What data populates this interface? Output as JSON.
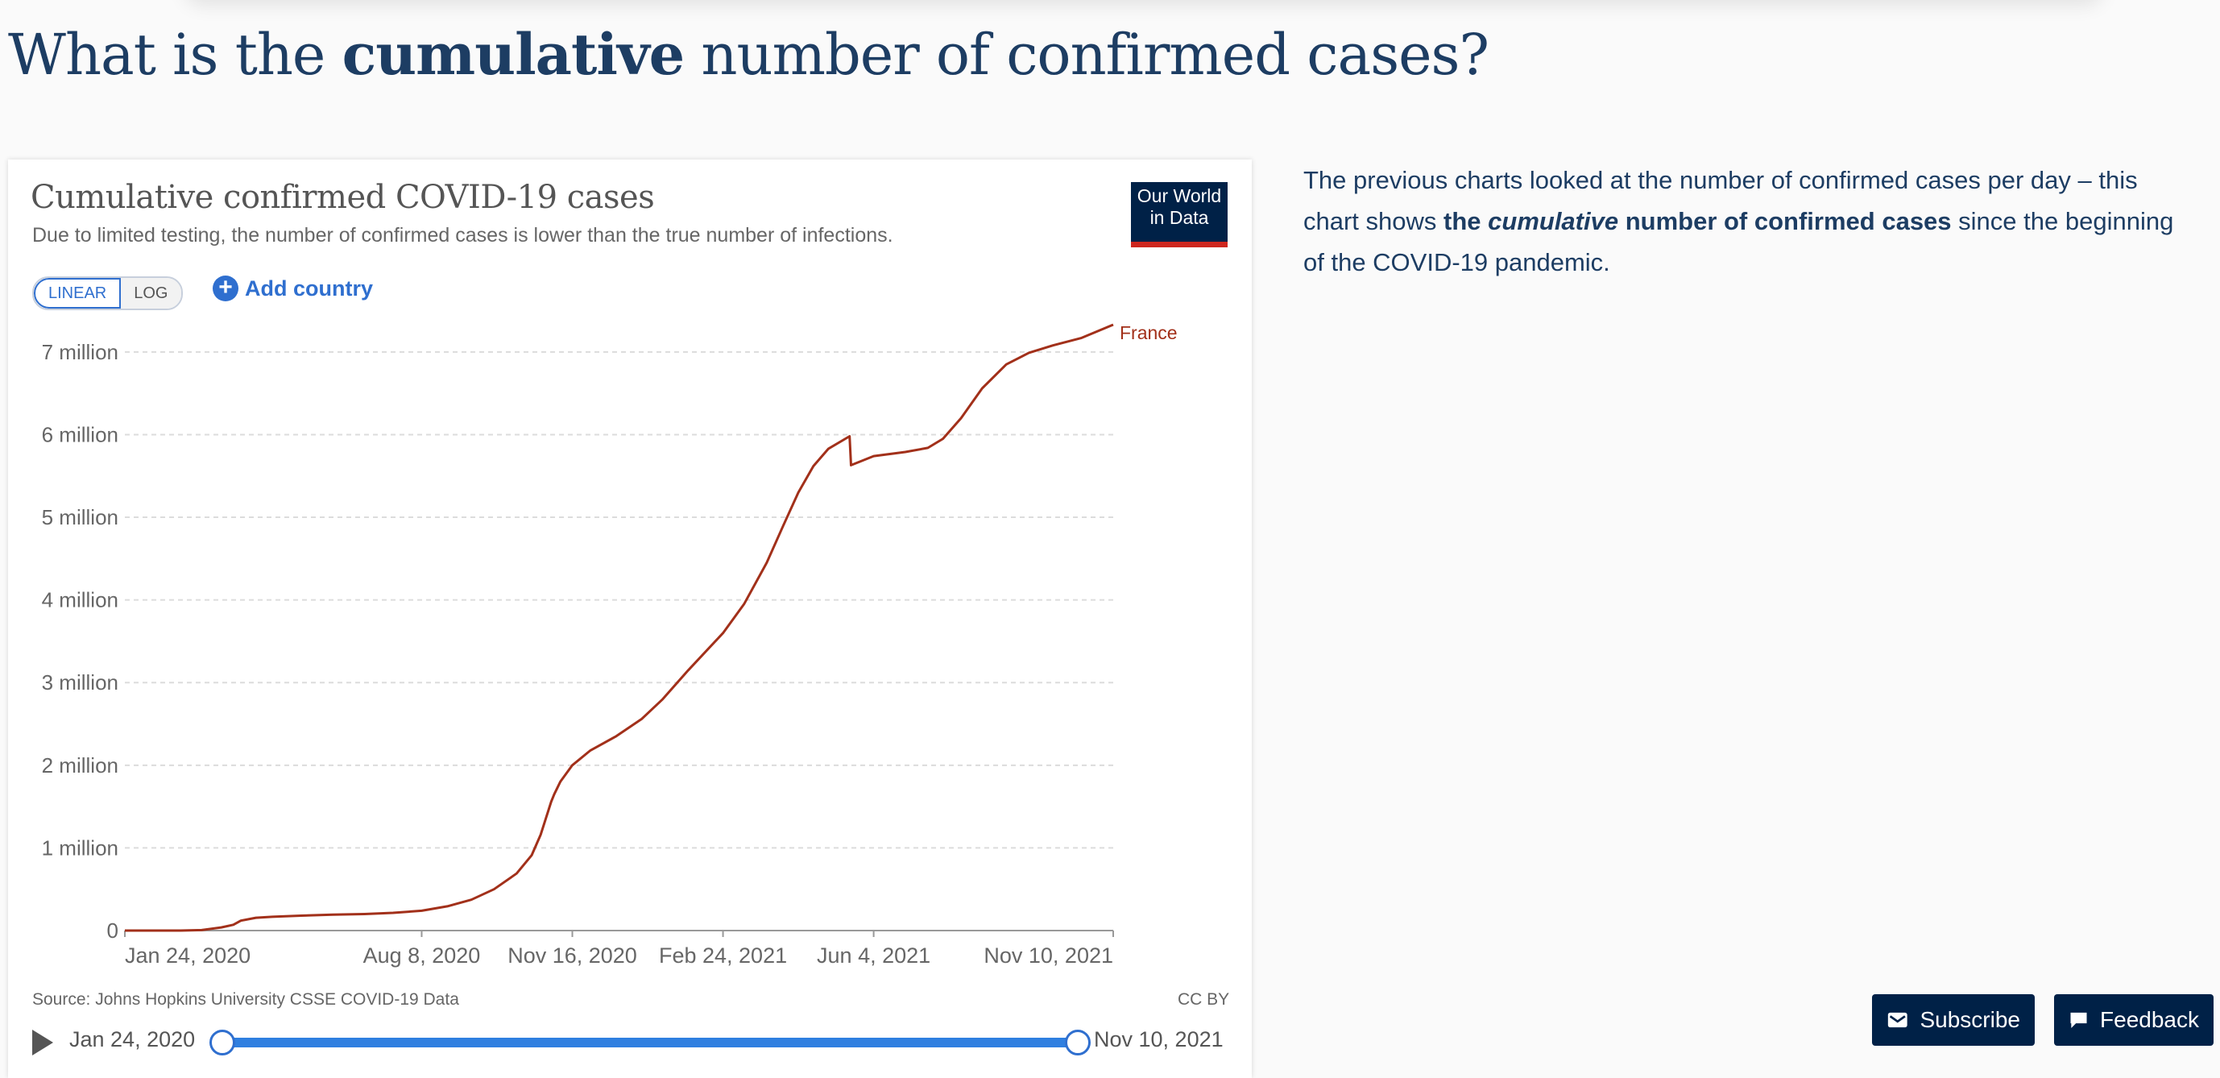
{
  "heading": {
    "before": "What is the ",
    "bold": "cumulative",
    "after": " number of confirmed cases?"
  },
  "chart": {
    "title": "Cumulative confirmed COVID-19 cases",
    "subtitle": "Due to limited testing, the number of confirmed cases is lower than the true number of infections.",
    "logo_line1": "Our World",
    "logo_line2": "in Data",
    "scale_linear": "LINEAR",
    "scale_log": "LOG",
    "add_country": "Add country",
    "source": "Source: Johns Hopkins University CSSE COVID-19 Data",
    "license": "CC BY",
    "timeline_start": "Jan 24, 2020",
    "timeline_end": "Nov 10, 2021"
  },
  "chart_data": {
    "type": "line",
    "title": "Cumulative confirmed COVID-19 cases",
    "xlabel": "",
    "ylabel": "",
    "x_range": [
      "2020-01-24",
      "2021-11-10"
    ],
    "ylim": [
      0,
      7340000
    ],
    "y_ticks": [
      0,
      1000000,
      2000000,
      3000000,
      4000000,
      5000000,
      6000000,
      7000000
    ],
    "y_tick_labels": [
      "0",
      "1 million",
      "2 million",
      "3 million",
      "4 million",
      "5 million",
      "6 million",
      "7 million"
    ],
    "x_ticks": [
      "2020-01-24",
      "2020-08-08",
      "2020-11-16",
      "2021-02-24",
      "2021-06-04",
      "2021-11-10"
    ],
    "x_tick_labels": [
      "Jan 24, 2020",
      "Aug 8, 2020",
      "Nov 16, 2020",
      "Feb 24, 2021",
      "Jun 4, 2021",
      "Nov 10, 2021"
    ],
    "grid": true,
    "line_color": "#a2301a",
    "series": [
      {
        "name": "France",
        "points": [
          [
            "2020-01-24",
            0
          ],
          [
            "2020-03-01",
            100
          ],
          [
            "2020-03-15",
            5400
          ],
          [
            "2020-03-28",
            38000
          ],
          [
            "2020-04-05",
            70000
          ],
          [
            "2020-04-10",
            120000
          ],
          [
            "2020-04-20",
            155000
          ],
          [
            "2020-05-01",
            167000
          ],
          [
            "2020-05-20",
            180000
          ],
          [
            "2020-06-10",
            192000
          ],
          [
            "2020-07-01",
            200000
          ],
          [
            "2020-07-20",
            214000
          ],
          [
            "2020-08-08",
            240000
          ],
          [
            "2020-08-25",
            293000
          ],
          [
            "2020-09-10",
            373000
          ],
          [
            "2020-09-25",
            500000
          ],
          [
            "2020-10-10",
            690000
          ],
          [
            "2020-10-20",
            910000
          ],
          [
            "2020-10-26",
            1160000
          ],
          [
            "2020-11-02",
            1560000
          ],
          [
            "2020-11-04",
            1650000
          ],
          [
            "2020-11-08",
            1800000
          ],
          [
            "2020-11-16",
            2000000
          ],
          [
            "2020-11-28",
            2180000
          ],
          [
            "2020-12-15",
            2350000
          ],
          [
            "2021-01-01",
            2560000
          ],
          [
            "2021-01-15",
            2800000
          ],
          [
            "2021-02-01",
            3150000
          ],
          [
            "2021-02-24",
            3600000
          ],
          [
            "2021-03-10",
            3950000
          ],
          [
            "2021-03-25",
            4450000
          ],
          [
            "2021-04-05",
            4900000
          ],
          [
            "2021-04-15",
            5300000
          ],
          [
            "2021-04-25",
            5620000
          ],
          [
            "2021-05-05",
            5830000
          ],
          [
            "2021-05-19",
            5980000
          ],
          [
            "2021-05-20",
            5630000
          ],
          [
            "2021-06-04",
            5740000
          ],
          [
            "2021-06-25",
            5790000
          ],
          [
            "2021-07-10",
            5840000
          ],
          [
            "2021-07-20",
            5950000
          ],
          [
            "2021-08-01",
            6200000
          ],
          [
            "2021-08-15",
            6560000
          ],
          [
            "2021-08-31",
            6850000
          ],
          [
            "2021-09-15",
            6990000
          ],
          [
            "2021-10-01",
            7080000
          ],
          [
            "2021-10-20",
            7170000
          ],
          [
            "2021-11-10",
            7330000
          ]
        ]
      }
    ]
  },
  "description": {
    "text1": "The previous charts looked at the number of confirmed cases per day – this chart shows ",
    "bold1": "the ",
    "bold_italic": "cumulative",
    "bold2": " number of confirmed cases",
    "text2": " since the beginning of the COVID-19 pandemic."
  },
  "buttons": {
    "subscribe": "Subscribe",
    "feedback": "Feedback"
  }
}
